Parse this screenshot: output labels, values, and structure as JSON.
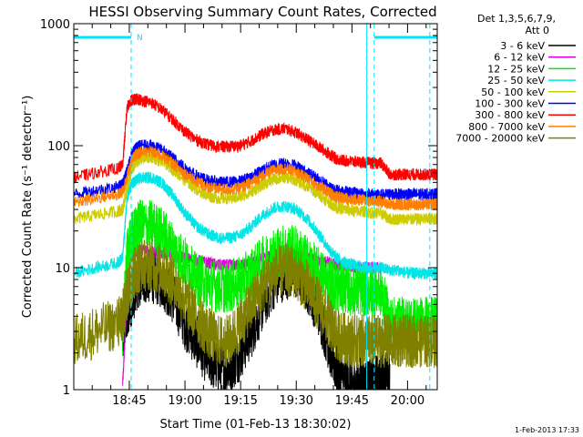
{
  "chart_data": {
    "type": "line",
    "title": "HESSI Observing Summary Count Rates, Corrected",
    "xlabel": "Start Time (01-Feb-13 18:30:02)",
    "ylabel": "Corrected Count Rate (s⁻¹ detector⁻¹)",
    "y_scale": "log",
    "ylim": [
      1,
      1000
    ],
    "xlim": [
      "18:30:02",
      "20:08:00"
    ],
    "y_ticks": [
      "1",
      "10",
      "100",
      "1000"
    ],
    "x_ticks": [
      "18:45",
      "19:00",
      "19:15",
      "19:30",
      "19:45",
      "20:00"
    ],
    "legend_header": [
      "Det 1,3,5,6,7,9,",
      "Att 0"
    ],
    "legend_position": "right",
    "timestamp": "1-Feb-2013 17:33",
    "flag_label": "N",
    "flag_color": "#00e5ff",
    "attenuator_bars": [
      [
        "18:30:02",
        "18:45:30"
      ],
      [
        "19:51:00",
        "20:08:00"
      ]
    ],
    "dashed_markers": [
      "18:45:30",
      "19:51:00",
      "20:06:00"
    ],
    "solid_markers": [
      "19:49:00"
    ],
    "x_hours": [
      18.5,
      18.6,
      18.7,
      18.72,
      18.74,
      18.76,
      18.78,
      18.8,
      18.85,
      18.9,
      18.95,
      19.0,
      19.05,
      19.1,
      19.15,
      19.2,
      19.25,
      19.3,
      19.35,
      19.4,
      19.45,
      19.5,
      19.55,
      19.6,
      19.65,
      19.68,
      19.72,
      19.76,
      19.8,
      19.84,
      19.88,
      19.92,
      19.96,
      20.0,
      20.04,
      20.08,
      20.12,
      20.133
    ],
    "series": [
      {
        "name": "3 - 6 keV",
        "color": "#000000",
        "values": [
          null,
          null,
          null,
          2.5,
          4.5,
          5.5,
          7,
          8,
          8.5,
          7.5,
          5.5,
          3.5,
          2.5,
          1.8,
          1.5,
          1.5,
          2,
          3,
          5,
          7.5,
          9,
          9,
          7,
          4.5,
          2.2,
          1.5,
          1.2,
          1.1,
          1.2,
          1.1,
          1.3,
          1.3,
          null,
          null,
          null,
          null,
          null,
          null
        ]
      },
      {
        "name": "6 - 12 keV",
        "color": "#e000e0",
        "values": [
          null,
          null,
          null,
          1.1,
          6,
          13,
          13.5,
          14,
          14,
          13,
          12.5,
          12,
          11.5,
          11,
          10.5,
          10.5,
          10.5,
          11,
          12,
          12.5,
          12.5,
          12.5,
          12,
          11.5,
          11,
          10.5,
          10.5,
          10,
          10,
          10,
          10,
          null,
          null,
          null,
          null,
          null,
          null,
          null
        ]
      },
      {
        "name": "12 - 25 keV",
        "color": "#00ee00",
        "values": [
          null,
          null,
          null,
          3,
          12,
          17,
          20,
          22,
          22,
          19,
          14,
          11,
          8,
          7.5,
          7,
          7,
          7.5,
          9,
          11,
          13,
          14,
          13.5,
          11,
          9,
          7.5,
          7,
          7,
          6.5,
          6.5,
          6.5,
          6.5,
          3.5,
          3.5,
          3.5,
          3.5,
          3.5,
          3.5,
          3.5
        ]
      },
      {
        "name": "25 - 50 keV",
        "color": "#00e5e5",
        "values": [
          9,
          10,
          11,
          12,
          38,
          48,
          52,
          54,
          55,
          49,
          38,
          28,
          22,
          19,
          17.5,
          17.5,
          18.5,
          22,
          27,
          31,
          32,
          30,
          25,
          19,
          14,
          12,
          11,
          10.5,
          10,
          10,
          10,
          9.5,
          9.5,
          9,
          9,
          9,
          9,
          9
        ]
      },
      {
        "name": "50 - 100 keV",
        "color": "#cccc00",
        "values": [
          25,
          27,
          29,
          30,
          45,
          62,
          73,
          78,
          80,
          74,
          63,
          52,
          44,
          39,
          37,
          37,
          38,
          42,
          48,
          53,
          55,
          52,
          46,
          40,
          34,
          31,
          30,
          29,
          29,
          28,
          28,
          25,
          25,
          25,
          25,
          25,
          25,
          25
        ]
      },
      {
        "name": "100 - 300 keV",
        "color": "#0000ff",
        "values": [
          40,
          43,
          46,
          48,
          62,
          85,
          95,
          100,
          100,
          92,
          78,
          66,
          57,
          52,
          50,
          50,
          51,
          56,
          63,
          70,
          72,
          68,
          60,
          53,
          46,
          43,
          42,
          41,
          40,
          40,
          39,
          40,
          40,
          40,
          40,
          40,
          40,
          40
        ]
      },
      {
        "name": "300 - 800 keV",
        "color": "#ff0000",
        "values": [
          55,
          60,
          65,
          70,
          205,
          235,
          240,
          238,
          225,
          195,
          160,
          130,
          112,
          102,
          98,
          98,
          100,
          110,
          125,
          135,
          138,
          128,
          112,
          98,
          85,
          78,
          75,
          74,
          73,
          72,
          72,
          58,
          58,
          58,
          58,
          58,
          58,
          58
        ]
      },
      {
        "name": "800 - 7000 keV",
        "color": "#ff8000",
        "values": [
          34,
          37,
          40,
          42,
          55,
          75,
          84,
          88,
          89,
          82,
          70,
          59,
          51,
          46,
          44,
          44,
          45,
          50,
          57,
          63,
          65,
          61,
          54,
          47,
          41,
          38,
          37,
          36,
          36,
          35,
          35,
          33,
          33,
          33,
          33,
          33,
          33,
          33
        ]
      },
      {
        "name": "7000 - 20000 keV",
        "color": "#808000",
        "values": [
          2.5,
          3,
          3.5,
          4,
          6,
          8,
          9.5,
          10.5,
          10.5,
          9.5,
          7.5,
          5.5,
          4,
          3,
          2.5,
          2.5,
          3.5,
          5,
          7,
          9,
          9.5,
          9,
          7,
          5,
          3.5,
          2.8,
          2.6,
          2.5,
          2.5,
          2.5,
          2.5,
          2.5,
          2.5,
          2.5,
          2.5,
          2.5,
          2.5,
          2.5
        ]
      }
    ]
  }
}
